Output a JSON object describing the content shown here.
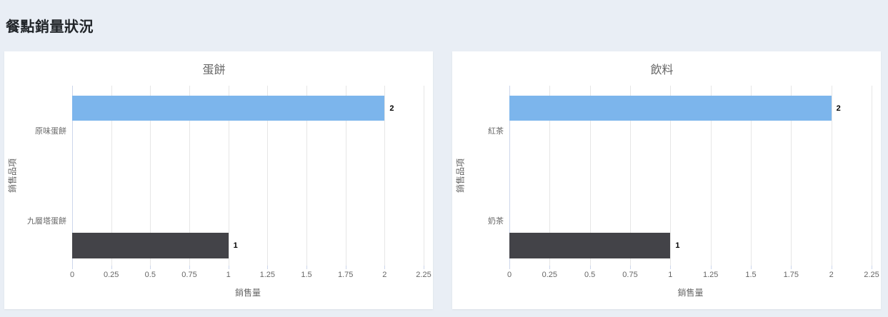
{
  "page": {
    "title": "餐點銷量狀況"
  },
  "colors": {
    "page_background": "#e9eef5",
    "card_background": "#ffffff",
    "bar_blue": "#7cb5ec",
    "bar_dark": "#434348",
    "gridline": "#e6e6e6",
    "axis_line": "#ccd6eb",
    "label_text": "#666666",
    "data_label_text": "#000000"
  },
  "chart_data": [
    {
      "type": "bar",
      "orientation": "horizontal",
      "title": "蛋餅",
      "categories": [
        "原味蛋餅",
        "九層塔蛋餅"
      ],
      "values": [
        2,
        1
      ],
      "data_labels": [
        "2",
        "1"
      ],
      "bar_colors": [
        "#7cb5ec",
        "#434348"
      ],
      "xlabel": "銷售量",
      "ylabel": "銷售品項",
      "xlim": [
        0,
        2.25
      ],
      "xticks": [
        "0",
        "0.25",
        "0.5",
        "0.75",
        "1",
        "1.25",
        "1.5",
        "1.75",
        "2",
        "2.25"
      ],
      "grid": "vertical",
      "legend": "none"
    },
    {
      "type": "bar",
      "orientation": "horizontal",
      "title": "飲料",
      "categories": [
        "紅茶",
        "奶茶"
      ],
      "values": [
        2,
        1
      ],
      "data_labels": [
        "2",
        "1"
      ],
      "bar_colors": [
        "#7cb5ec",
        "#434348"
      ],
      "xlabel": "銷售量",
      "ylabel": "銷售品項",
      "xlim": [
        0,
        2.25
      ],
      "xticks": [
        "0",
        "0.25",
        "0.5",
        "0.75",
        "1",
        "1.25",
        "1.5",
        "1.75",
        "2",
        "2.25"
      ],
      "grid": "vertical",
      "legend": "none"
    }
  ]
}
